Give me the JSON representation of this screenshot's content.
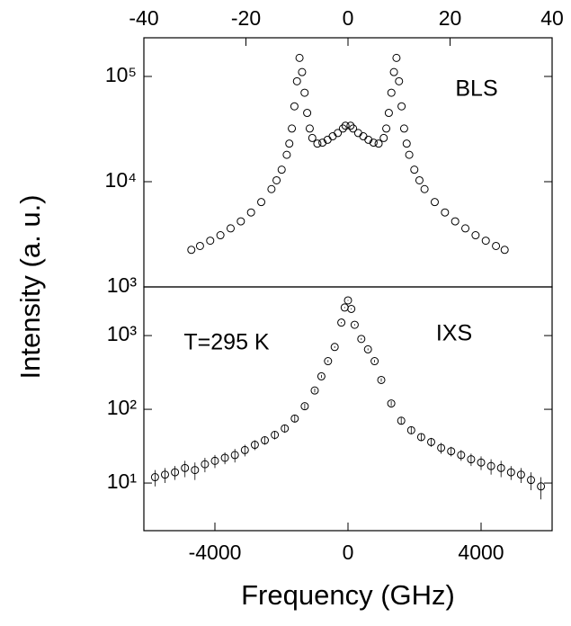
{
  "chart_data": [
    {
      "type": "scatter",
      "label": "BLS",
      "ylabel": "Intensity (a. u.)",
      "xaxis_position": "top",
      "log_y": true,
      "color": "#000000",
      "x": [
        -30.7,
        -29,
        -27,
        -25,
        -23,
        -21,
        -19,
        -17,
        -15,
        -14,
        -13,
        -12,
        -11.5,
        -11,
        -10.5,
        -10,
        -9.5,
        -9,
        -8.5,
        -8,
        -7.5,
        -7,
        -6,
        -5,
        -4,
        -3,
        -2,
        -1,
        -0.5,
        0.5,
        1,
        2,
        3,
        4,
        5,
        6,
        7,
        7.5,
        8,
        8.5,
        9,
        9.5,
        10,
        10.5,
        11,
        11.5,
        12,
        13,
        14,
        15,
        17,
        19,
        21,
        23,
        25,
        27,
        29,
        30.7
      ],
      "values": [
        2250,
        2450,
        2750,
        3100,
        3600,
        4200,
        5100,
        6400,
        8500,
        10300,
        13000,
        18000,
        23000,
        32000,
        52000,
        90000,
        150000,
        110000,
        70000,
        45000,
        32000,
        26000,
        23000,
        23500,
        25000,
        27000,
        29000,
        32000,
        34000,
        34000,
        32000,
        29000,
        27000,
        25000,
        23500,
        23000,
        26000,
        32000,
        45000,
        70000,
        110000,
        150000,
        90000,
        52000,
        32000,
        23000,
        18000,
        13000,
        10300,
        8500,
        6400,
        5100,
        4200,
        3600,
        3100,
        2750,
        2450,
        2250
      ],
      "xlim": [
        -40,
        40
      ],
      "xticks": [
        -40,
        -20,
        0,
        20,
        40
      ],
      "ylim": [
        1000,
        233000
      ],
      "yticks": [
        {
          "value": 1000,
          "label": "10³"
        },
        {
          "value": 10000,
          "label": "10⁴"
        },
        {
          "value": 100000,
          "label": "10⁵"
        }
      ]
    },
    {
      "type": "scatter",
      "label": "IXS",
      "annotation": "T=295 K",
      "xlabel": "Frequency (GHz)",
      "xaxis_position": "bottom",
      "log_y": true,
      "color": "#000000",
      "x": [
        -5800,
        -5500,
        -5200,
        -4900,
        -4600,
        -4300,
        -4000,
        -3700,
        -3400,
        -3100,
        -2800,
        -2500,
        -2200,
        -1900,
        -1600,
        -1300,
        -1000,
        -800,
        -600,
        -400,
        -200,
        -100,
        0,
        100,
        200,
        400,
        600,
        800,
        1000,
        1300,
        1600,
        1900,
        2200,
        2500,
        2800,
        3100,
        3400,
        3700,
        4000,
        4300,
        4600,
        4900,
        5200,
        5500,
        5800
      ],
      "values": [
        12,
        13,
        14,
        16,
        15,
        18,
        20,
        22,
        24,
        28,
        33,
        38,
        45,
        55,
        75,
        110,
        180,
        280,
        450,
        700,
        1500,
        2400,
        3000,
        2300,
        1400,
        900,
        650,
        450,
        250,
        120,
        70,
        52,
        42,
        36,
        30,
        27,
        24,
        21,
        19,
        17,
        16,
        14,
        13,
        11,
        9
      ],
      "errors": [
        3,
        3,
        3,
        4,
        4,
        4,
        4,
        4,
        5,
        5,
        5,
        5,
        6,
        7,
        8,
        9,
        11,
        13,
        16,
        20,
        30,
        40,
        45,
        40,
        30,
        25,
        20,
        17,
        13,
        9,
        7,
        6,
        5,
        5,
        5,
        4,
        4,
        4,
        4,
        4,
        4,
        3,
        3,
        3,
        3
      ],
      "xlim": [
        -6135,
        6135
      ],
      "xticks": [
        -4000,
        0,
        4000
      ],
      "ylim": [
        2.26,
        4570
      ],
      "yticks": [
        {
          "value": 10,
          "label": "10¹"
        },
        {
          "value": 100,
          "label": "10²"
        },
        {
          "value": 1000,
          "label": "10³"
        }
      ]
    }
  ]
}
